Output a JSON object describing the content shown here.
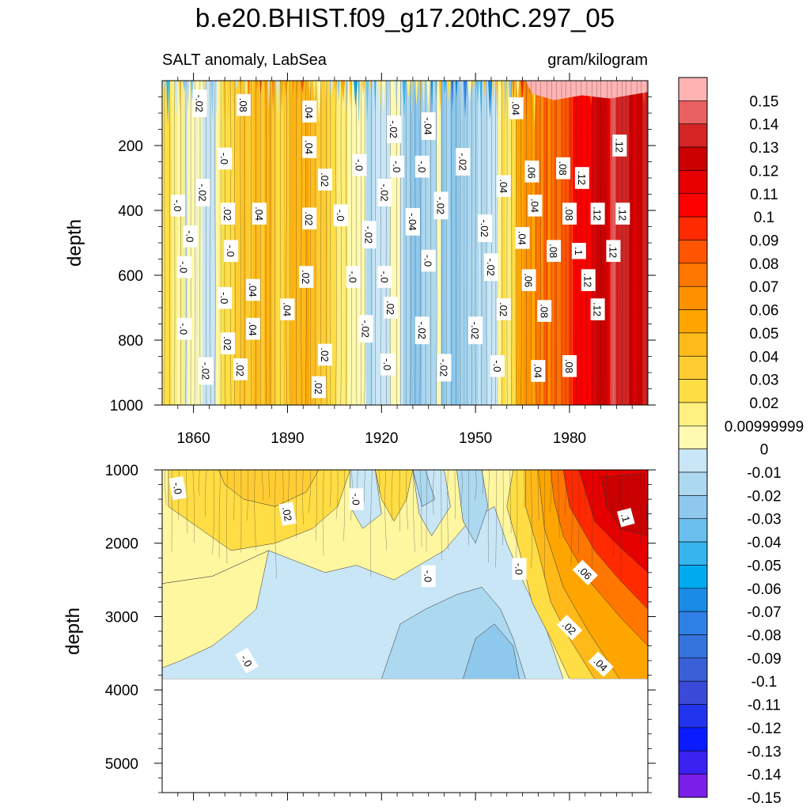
{
  "chart_data": [
    {
      "type": "heatmap",
      "panel": "upper",
      "title": "b.e20.BHIST.f09_g17.20thC.297_05",
      "left_string": "SALT anomaly, LabSea",
      "right_string": "gram/kilogram",
      "xlabel": "",
      "ylabel": "depth",
      "xlim": [
        1850,
        2005
      ],
      "ylim": [
        1000,
        0
      ],
      "x_ticks": [
        1860,
        1890,
        1920,
        1950,
        1980
      ],
      "x_tick_labels": [
        "1860",
        "1890",
        "1920",
        "1950",
        "1980"
      ],
      "y_ticks": [
        200,
        400,
        600,
        800,
        1000
      ],
      "y_tick_labels": [
        "200",
        "400",
        "600",
        "800",
        "1000"
      ],
      "column_anomalies": [
        {
          "year": 1852,
          "value": 0.005
        },
        {
          "year": 1858,
          "value": -0.008
        },
        {
          "year": 1864,
          "value": -0.012
        },
        {
          "year": 1870,
          "value": 0.012
        },
        {
          "year": 1876,
          "value": 0.03
        },
        {
          "year": 1882,
          "value": 0.038
        },
        {
          "year": 1888,
          "value": 0.028
        },
        {
          "year": 1894,
          "value": 0.034
        },
        {
          "year": 1900,
          "value": 0.022
        },
        {
          "year": 1906,
          "value": 0.01
        },
        {
          "year": 1912,
          "value": -0.006
        },
        {
          "year": 1918,
          "value": -0.016
        },
        {
          "year": 1924,
          "value": -0.012
        },
        {
          "year": 1930,
          "value": -0.03
        },
        {
          "year": 1936,
          "value": -0.02
        },
        {
          "year": 1942,
          "value": -0.036
        },
        {
          "year": 1948,
          "value": -0.026
        },
        {
          "year": 1954,
          "value": -0.018
        },
        {
          "year": 1960,
          "value": 0.012
        },
        {
          "year": 1966,
          "value": 0.045
        },
        {
          "year": 1972,
          "value": 0.062
        },
        {
          "year": 1978,
          "value": 0.078
        },
        {
          "year": 1984,
          "value": 0.1
        },
        {
          "year": 1990,
          "value": 0.115
        },
        {
          "year": 1996,
          "value": 0.125
        },
        {
          "year": 2002,
          "value": 0.12
        }
      ],
      "contour_labels": [
        {
          "text": "-.02",
          "year": 1862,
          "depth": 70
        },
        {
          "text": ".08",
          "year": 1876,
          "depth": 75
        },
        {
          "text": ".04",
          "year": 1897,
          "depth": 95
        },
        {
          "text": "-.02",
          "year": 1924,
          "depth": 150
        },
        {
          "text": "-.04",
          "year": 1935,
          "depth": 140
        },
        {
          "text": ".04",
          "year": 1963,
          "depth": 85
        },
        {
          "text": ".04",
          "year": 1897,
          "depth": 205
        },
        {
          "text": "-.0",
          "year": 1870,
          "depth": 240
        },
        {
          "text": "-.0",
          "year": 1913,
          "depth": 260
        },
        {
          "text": "-.0",
          "year": 1925,
          "depth": 265
        },
        {
          "text": "-.0",
          "year": 1933,
          "depth": 265
        },
        {
          "text": "-.02",
          "year": 1946,
          "depth": 250
        },
        {
          "text": ".06",
          "year": 1968,
          "depth": 280
        },
        {
          "text": ".08",
          "year": 1978,
          "depth": 270
        },
        {
          "text": ".12",
          "year": 1996,
          "depth": 200
        },
        {
          "text": ".12",
          "year": 1984,
          "depth": 300
        },
        {
          "text": "-.02",
          "year": 1863,
          "depth": 345
        },
        {
          "text": ".02",
          "year": 1902,
          "depth": 305
        },
        {
          "text": "-.02",
          "year": 1921,
          "depth": 345
        },
        {
          "text": ".04",
          "year": 1959,
          "depth": 325
        },
        {
          "text": "-.0",
          "year": 1855,
          "depth": 385
        },
        {
          "text": ".02",
          "year": 1871,
          "depth": 410
        },
        {
          "text": ".04",
          "year": 1881,
          "depth": 410
        },
        {
          "text": ".02",
          "year": 1897,
          "depth": 425
        },
        {
          "text": "-.0",
          "year": 1907,
          "depth": 415
        },
        {
          "text": "-.02",
          "year": 1939,
          "depth": 385
        },
        {
          "text": "-.04",
          "year": 1930,
          "depth": 435
        },
        {
          "text": ".04",
          "year": 1969,
          "depth": 385
        },
        {
          "text": ".08",
          "year": 1980,
          "depth": 410
        },
        {
          "text": ".12",
          "year": 1989,
          "depth": 410
        },
        {
          "text": ".12",
          "year": 1997,
          "depth": 410
        },
        {
          "text": "-.0",
          "year": 1859,
          "depth": 480
        },
        {
          "text": "-.02",
          "year": 1916,
          "depth": 475
        },
        {
          "text": "-.02",
          "year": 1953,
          "depth": 455
        },
        {
          "text": ".04",
          "year": 1965,
          "depth": 485
        },
        {
          "text": "-.0",
          "year": 1872,
          "depth": 525
        },
        {
          "text": ".08",
          "year": 1975,
          "depth": 525
        },
        {
          "text": ".1",
          "year": 1983,
          "depth": 525
        },
        {
          "text": ".12",
          "year": 1994,
          "depth": 525
        },
        {
          "text": "-.0",
          "year": 1857,
          "depth": 575
        },
        {
          "text": "-.0",
          "year": 1935,
          "depth": 555
        },
        {
          "text": "-.02",
          "year": 1955,
          "depth": 575
        },
        {
          "text": ".02",
          "year": 1896,
          "depth": 605
        },
        {
          "text": "-.0",
          "year": 1911,
          "depth": 605
        },
        {
          "text": "-.0",
          "year": 1921,
          "depth": 605
        },
        {
          "text": ".06",
          "year": 1967,
          "depth": 615
        },
        {
          "text": ".12",
          "year": 1986,
          "depth": 615
        },
        {
          "text": ".04",
          "year": 1879,
          "depth": 645
        },
        {
          "text": "-.0",
          "year": 1870,
          "depth": 670
        },
        {
          "text": ".04",
          "year": 1890,
          "depth": 705
        },
        {
          "text": ".02",
          "year": 1923,
          "depth": 700
        },
        {
          "text": ".02",
          "year": 1959,
          "depth": 705
        },
        {
          "text": ".08",
          "year": 1972,
          "depth": 710
        },
        {
          "text": ".12",
          "year": 1989,
          "depth": 705
        },
        {
          "text": "-.0",
          "year": 1857,
          "depth": 765
        },
        {
          "text": ".04",
          "year": 1879,
          "depth": 765
        },
        {
          "text": "-.02",
          "year": 1915,
          "depth": 765
        },
        {
          "text": "-.02",
          "year": 1933,
          "depth": 770
        },
        {
          "text": "-.02",
          "year": 1950,
          "depth": 770
        },
        {
          "text": ".02",
          "year": 1871,
          "depth": 810
        },
        {
          "text": ".02",
          "year": 1902,
          "depth": 845
        },
        {
          "text": "-.0",
          "year": 1922,
          "depth": 875
        },
        {
          "text": "-.02",
          "year": 1940,
          "depth": 885
        },
        {
          "text": "-.0",
          "year": 1957,
          "depth": 880
        },
        {
          "text": ".04",
          "year": 1970,
          "depth": 895
        },
        {
          "text": ".08",
          "year": 1980,
          "depth": 880
        },
        {
          "text": "-.02",
          "year": 1864,
          "depth": 895
        },
        {
          "text": ".02",
          "year": 1875,
          "depth": 890
        },
        {
          "text": ".02",
          "year": 1900,
          "depth": 945
        }
      ]
    },
    {
      "type": "heatmap",
      "panel": "lower",
      "xlabel": "",
      "ylabel": "depth",
      "xlim": [
        1850,
        2005
      ],
      "ylim": [
        5400,
        1000
      ],
      "bottom_depth": 3850,
      "y_ticks": [
        1000,
        2000,
        3000,
        4000,
        5000
      ],
      "y_tick_labels": [
        "1000",
        "2000",
        "3000",
        "4000",
        "5000"
      ],
      "x_ticks": [
        1860,
        1890,
        1920,
        1950,
        1980
      ],
      "x_tick_labels": [
        "",
        "",
        "",
        "",
        ""
      ],
      "contour_labels": [
        {
          "text": "-.0",
          "year": 1855,
          "depth": 1250
        },
        {
          "text": ".02",
          "year": 1890,
          "depth": 1600
        },
        {
          "text": "-.0",
          "year": 1912,
          "depth": 1400
        },
        {
          "text": "-.0",
          "year": 1935,
          "depth": 2450
        },
        {
          "text": "-.0",
          "year": 1964,
          "depth": 2350
        },
        {
          "text": ".06",
          "year": 1985,
          "depth": 2400
        },
        {
          "text": ".1",
          "year": 1998,
          "depth": 1650
        },
        {
          "text": ".02",
          "year": 1980,
          "depth": 3150
        },
        {
          "text": ".04",
          "year": 1990,
          "depth": 3650
        },
        {
          "text": "-.0",
          "year": 1877,
          "depth": 3600
        }
      ]
    },
    {
      "type": "colorbar",
      "levels": [
        -0.15,
        -0.14,
        -0.13,
        -0.12,
        -0.11,
        -0.1,
        -0.09,
        -0.08,
        -0.07,
        -0.06,
        -0.05,
        -0.04,
        -0.03,
        -0.02,
        -0.01,
        0,
        0.00999999,
        0.02,
        0.03,
        0.04,
        0.05,
        0.06,
        0.07,
        0.08,
        0.09,
        0.1,
        0.11,
        0.12,
        0.13,
        0.14,
        0.15
      ],
      "labels": [
        "0.15",
        "0.14",
        "0.13",
        "0.12",
        "0.11",
        "0.1",
        "0.09",
        "0.08",
        "0.07",
        "0.06",
        "0.05",
        "0.04",
        "0.03",
        "0.02",
        "0.00999999",
        "0",
        "-0.01",
        "-0.02",
        "-0.03",
        "-0.04",
        "-0.05",
        "-0.06",
        "-0.07",
        "-0.08",
        "-0.09",
        "-0.1",
        "-0.11",
        "-0.12",
        "-0.13",
        "-0.14",
        "-0.15"
      ],
      "colors_top_to_bottom": [
        "#ffb3b3",
        "#e8605f",
        "#d52424",
        "#cc0000",
        "#e60000",
        "#ff0000",
        "#ff2a00",
        "#ff5500",
        "#ff7700",
        "#ff9100",
        "#ffa500",
        "#ffba1a",
        "#ffcd33",
        "#ffdd44",
        "#fff080",
        "#fffab0",
        "#c8e6f5",
        "#acd8f0",
        "#8ec8ec",
        "#69bfee",
        "#35b4ee",
        "#00aaee",
        "#1a8ce6",
        "#2f80e6",
        "#3573dd",
        "#3a60d8",
        "#3b4ad8",
        "#2233ee",
        "#0b1bff",
        "#3a22f0",
        "#7a1ee8"
      ]
    }
  ]
}
